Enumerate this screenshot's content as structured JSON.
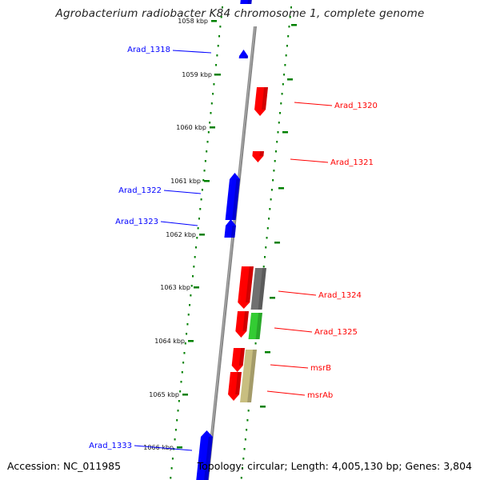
{
  "title": "Agrobacterium radiobacter K84 chromosome 1, complete genome",
  "accession": "Accession: NC_011985",
  "topology": "Topology: circular; Length: 4,005,130 bp; Genes: 3,804",
  "ticks": [
    "1058 kbp",
    "1059 kbp",
    "1060 kbp",
    "1061 kbp",
    "1062 kbp",
    "1063 kbp",
    "1064 kbp",
    "1065 kbp",
    "1066 kbp"
  ],
  "genes": [
    {
      "name": "Arad_1318",
      "strand": "minus",
      "color": "#0000ff"
    },
    {
      "name": "Arad_1320",
      "strand": "plus",
      "color": "#ff0000"
    },
    {
      "name": "Arad_1321",
      "strand": "plus",
      "color": "#ff0000"
    },
    {
      "name": "Arad_1322",
      "strand": "minus",
      "color": "#0000ff"
    },
    {
      "name": "Arad_1323",
      "strand": "minus",
      "color": "#0000ff"
    },
    {
      "name": "Arad_1324",
      "strand": "plus",
      "color": "#ff0000"
    },
    {
      "name": "Arad_1325",
      "strand": "plus",
      "color": "#ff0000"
    },
    {
      "name": "msrB",
      "strand": "plus",
      "color": "#ff0000"
    },
    {
      "name": "msrAb",
      "strand": "plus",
      "color": "#ff0000"
    },
    {
      "name": "Arad_1333",
      "strand": "minus",
      "color": "#0000ff"
    }
  ],
  "colors": {
    "minus": "#0000ff",
    "plus": "#ff0000",
    "tick": "#008000",
    "backbone": "#888888",
    "gray_feature": "#707070",
    "green_feature": "#33cc33",
    "khaki_feature": "#c8be80"
  }
}
